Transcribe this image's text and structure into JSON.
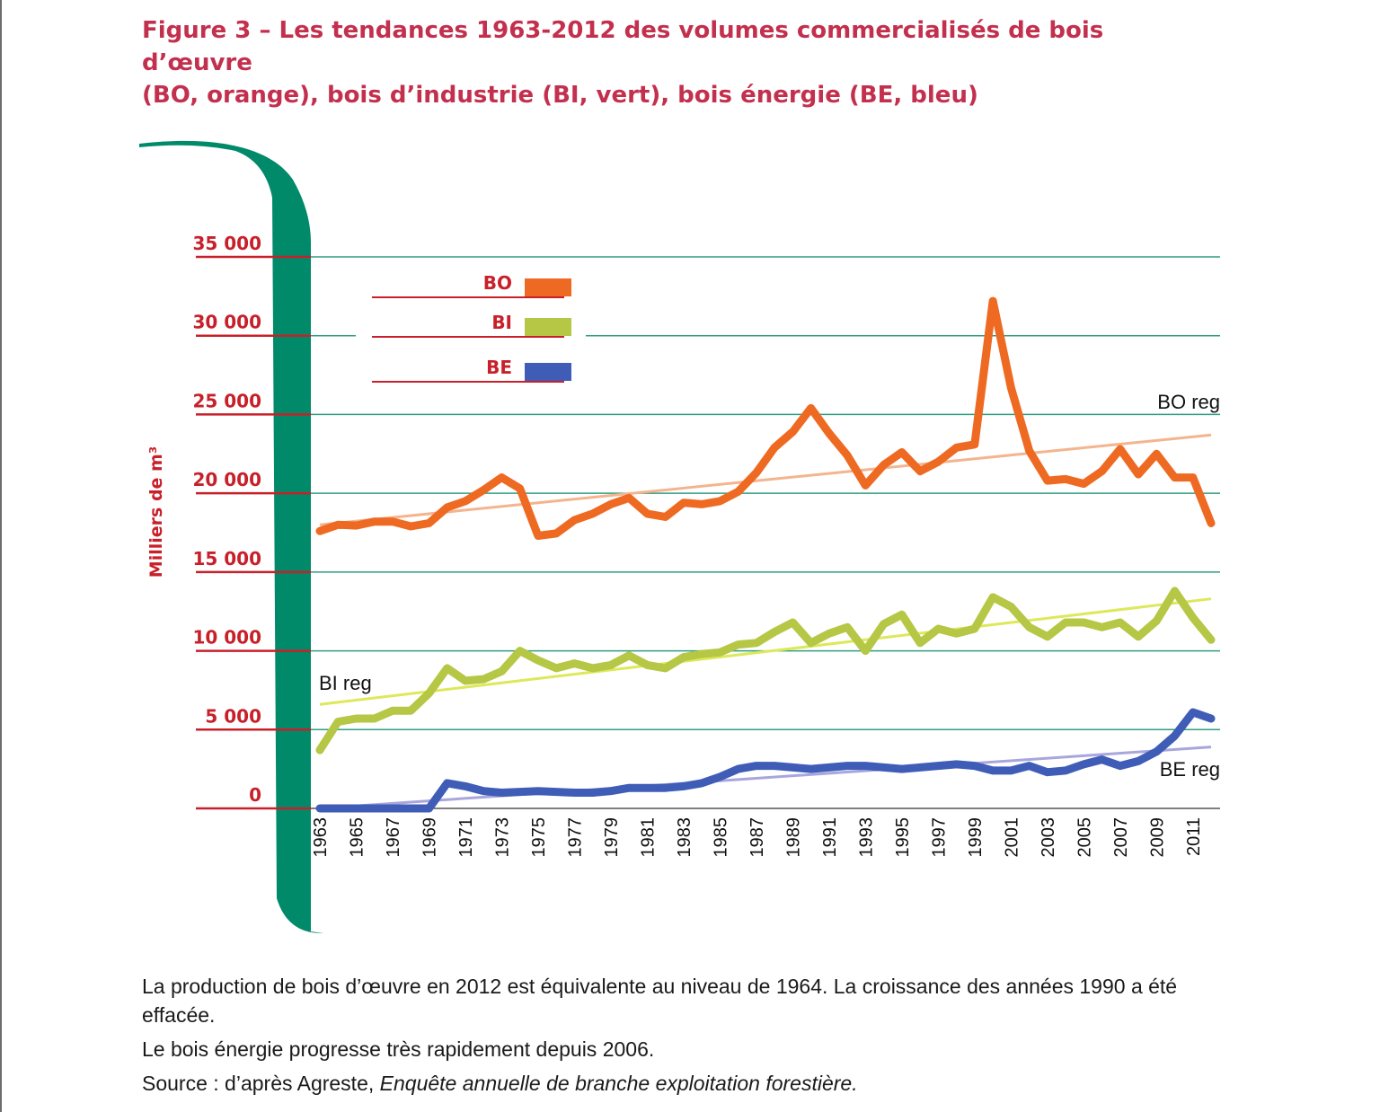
{
  "page": {
    "title_line1": "Figure 3 – Les tendances 1963-2012 des volumes commercialisés de bois d’œuvre",
    "title_line2": "(BO, orange), bois d’industrie (BI, vert), bois énergie (BE, bleu)",
    "notes": [
      "La production de bois d’œuvre en 2012 est équivalente au niveau de 1964. La croissance des années 1990 a été effacée.",
      "Le bois énergie progresse très rapidement depuis 2006."
    ],
    "source_prefix": "Source : d’après Agreste, ",
    "source_title": "Enquête annuelle de branche exploitation forestière."
  },
  "colors": {
    "accent": "#c3304e",
    "axis_red": "#c8202a",
    "grid": "#2f9e80",
    "bracket": "#008a6a",
    "bo": "#ee6a22",
    "bi": "#b5c744",
    "be": "#3f5db7",
    "bo_reg": "#f4b48e",
    "bi_reg": "#dde85a",
    "be_reg": "#a8a6dc"
  },
  "chart_data": {
    "type": "line",
    "title": "",
    "xlabel": "",
    "ylabel": "Milliers de m³",
    "ylim": [
      0,
      35000
    ],
    "yticks": [
      0,
      5000,
      10000,
      15000,
      20000,
      25000,
      30000,
      35000
    ],
    "ytick_labels": [
      "0",
      "5 000",
      "10 000",
      "15 000",
      "20 000",
      "25 000",
      "30 000",
      "35 000"
    ],
    "x": [
      1963,
      1964,
      1965,
      1966,
      1967,
      1968,
      1969,
      1970,
      1971,
      1972,
      1973,
      1974,
      1975,
      1976,
      1977,
      1978,
      1979,
      1980,
      1981,
      1982,
      1983,
      1984,
      1985,
      1986,
      1987,
      1988,
      1989,
      1990,
      1991,
      1992,
      1993,
      1994,
      1995,
      1996,
      1997,
      1998,
      1999,
      2000,
      2001,
      2002,
      2003,
      2004,
      2005,
      2006,
      2007,
      2008,
      2009,
      2010,
      2011,
      2012
    ],
    "xtick_labels": [
      "1963",
      "1965",
      "1967",
      "1969",
      "1971",
      "1973",
      "1975",
      "1977",
      "1979",
      "1981",
      "1983",
      "1985",
      "1987",
      "1989",
      "1991",
      "1993",
      "1995",
      "1997",
      "1999",
      "2001",
      "2003",
      "2005",
      "2007",
      "2009",
      "2011"
    ],
    "legend_position": "top-left",
    "grid": true,
    "series": [
      {
        "name": "BO",
        "color": "#ee6a22",
        "values": [
          17600,
          18000,
          17950,
          18200,
          18200,
          17900,
          18100,
          19100,
          19500,
          20200,
          21000,
          20300,
          17300,
          17450,
          18300,
          18700,
          19300,
          19700,
          18700,
          18500,
          19400,
          19300,
          19500,
          20100,
          21300,
          22900,
          23900,
          25400,
          23800,
          22400,
          20500,
          21800,
          22600,
          21400,
          22000,
          22900,
          23100,
          32200,
          26700,
          22700,
          20800,
          20900,
          20600,
          21400,
          22800,
          21200,
          22500,
          21000,
          21000,
          18100
        ]
      },
      {
        "name": "BI",
        "color": "#b5c744",
        "values": [
          3700,
          5500,
          5700,
          5700,
          6200,
          6200,
          7300,
          8900,
          8100,
          8200,
          8700,
          10000,
          9400,
          8900,
          9200,
          8900,
          9100,
          9700,
          9100,
          8900,
          9600,
          9800,
          9900,
          10400,
          10500,
          11200,
          11800,
          10500,
          11100,
          11500,
          10000,
          11700,
          12300,
          10500,
          11400,
          11100,
          11400,
          13400,
          12800,
          11500,
          10900,
          11800,
          11800,
          11500,
          11800,
          10900,
          11900,
          13800,
          12100,
          10700
        ]
      },
      {
        "name": "BE",
        "color": "#3f5db7",
        "values": [
          0,
          0,
          0,
          0,
          0,
          0,
          0,
          1600,
          1400,
          1100,
          1000,
          1050,
          1100,
          1050,
          1000,
          1000,
          1100,
          1300,
          1300,
          1300,
          1400,
          1600,
          2000,
          2500,
          2700,
          2700,
          2600,
          2500,
          2600,
          2700,
          2700,
          2600,
          2500,
          2600,
          2700,
          2800,
          2700,
          2400,
          2400,
          2700,
          2300,
          2400,
          2800,
          3100,
          2700,
          3000,
          3600,
          4600,
          6100,
          5700
        ]
      }
    ],
    "regressions": [
      {
        "name": "BO reg",
        "color": "#f4b48e",
        "x": [
          1963,
          2012
        ],
        "y": [
          18000,
          23700
        ]
      },
      {
        "name": "BI reg",
        "color": "#dde85a",
        "x": [
          1963,
          2012
        ],
        "y": [
          6600,
          13300
        ]
      },
      {
        "name": "BE reg",
        "color": "#a8a6dc",
        "x": [
          1963,
          2012
        ],
        "y": [
          0,
          3900
        ]
      }
    ]
  }
}
